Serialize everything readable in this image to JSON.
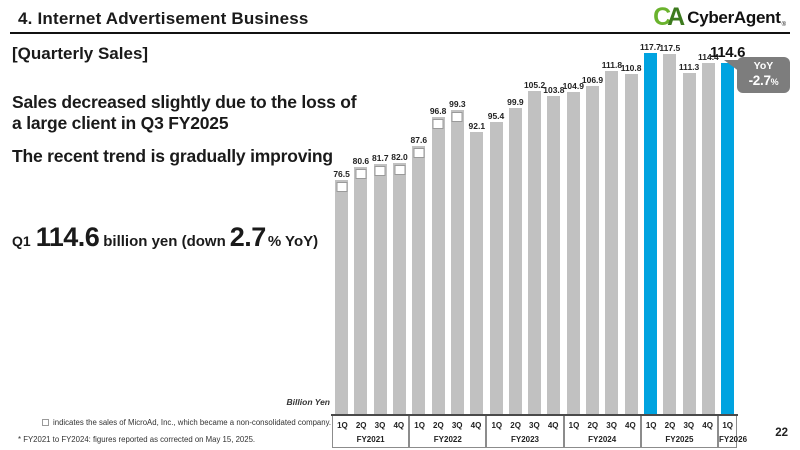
{
  "header": {
    "title": "4.  Internet Advertisement Business",
    "logo": {
      "mark_c": "C",
      "mark_a": "A",
      "name": "CyberAgent",
      "reg": "®"
    }
  },
  "left": {
    "section_label": "[Quarterly Sales]",
    "message1": "Sales decreased slightly due to the loss of a large client in Q3 FY2025",
    "message2": "The recent trend is gradually improving",
    "highlight": {
      "prefix": "Q1",
      "value": "114.6",
      "mid": "billion yen (down",
      "pct": "2.7",
      "suffix": "% YoY)"
    }
  },
  "chart_data": {
    "type": "bar",
    "title": "Quarterly Sales, Internet Advertisement Business",
    "unit_label": "Billion Yen",
    "ylabel": "Billion Yen",
    "ylim": [
      0,
      125
    ],
    "grid": false,
    "legend": "none",
    "categories": [
      "FY2021 1Q",
      "FY2021 2Q",
      "FY2021 3Q",
      "FY2021 4Q",
      "FY2022 1Q",
      "FY2022 2Q",
      "FY2022 3Q",
      "FY2022 4Q",
      "FY2023 1Q",
      "FY2023 2Q",
      "FY2023 3Q",
      "FY2023 4Q",
      "FY2024 1Q",
      "FY2024 2Q",
      "FY2024 3Q",
      "FY2024 4Q",
      "FY2025 1Q",
      "FY2025 2Q",
      "FY2025 3Q",
      "FY2025 4Q",
      "FY2026 1Q"
    ],
    "values": [
      76.5,
      80.6,
      81.7,
      82.0,
      87.6,
      96.8,
      99.3,
      92.1,
      95.4,
      99.9,
      105.2,
      103.8,
      104.9,
      106.9,
      111.8,
      110.8,
      117.7,
      117.5,
      111.3,
      114.4,
      114.6
    ],
    "labels": [
      "76.5",
      "80.6",
      "81.7",
      "82.0",
      "87.6",
      "96.8",
      "99.3",
      "92.1",
      "95.4",
      "99.9",
      "105.2",
      "103.8",
      "104.9",
      "106.9",
      "111.8",
      "110.8",
      "117.7",
      "117.5",
      "111.3",
      "114.4",
      "114.6"
    ],
    "highlight_indices": [
      16,
      20
    ],
    "microad_indices": [
      0,
      1,
      2,
      3,
      4,
      5,
      6
    ],
    "groups": [
      {
        "label": "FY2021",
        "quarters": [
          "1Q",
          "2Q",
          "3Q",
          "4Q"
        ]
      },
      {
        "label": "FY2022",
        "quarters": [
          "1Q",
          "2Q",
          "3Q",
          "4Q"
        ]
      },
      {
        "label": "FY2023",
        "quarters": [
          "1Q",
          "2Q",
          "3Q",
          "4Q"
        ]
      },
      {
        "label": "FY2024",
        "quarters": [
          "1Q",
          "2Q",
          "3Q",
          "4Q"
        ]
      },
      {
        "label": "FY2025",
        "quarters": [
          "1Q",
          "2Q",
          "3Q",
          "4Q"
        ]
      },
      {
        "label": "FY2026",
        "quarters": [
          "1Q"
        ]
      }
    ],
    "colors": {
      "bar": "#c1c1c1",
      "highlight": "#00a3e0",
      "callout_bg": "#7d7d7d"
    },
    "callout": {
      "line1": "YoY",
      "line2": "-2.7",
      "pct": "%"
    }
  },
  "footnotes": {
    "microad_note": "indicates the sales of MicroAd, Inc., which became a non-consolidated company.",
    "correction_note": "* FY2021 to FY2024: figures reported as corrected on May 15, 2025."
  },
  "page_number": "22"
}
